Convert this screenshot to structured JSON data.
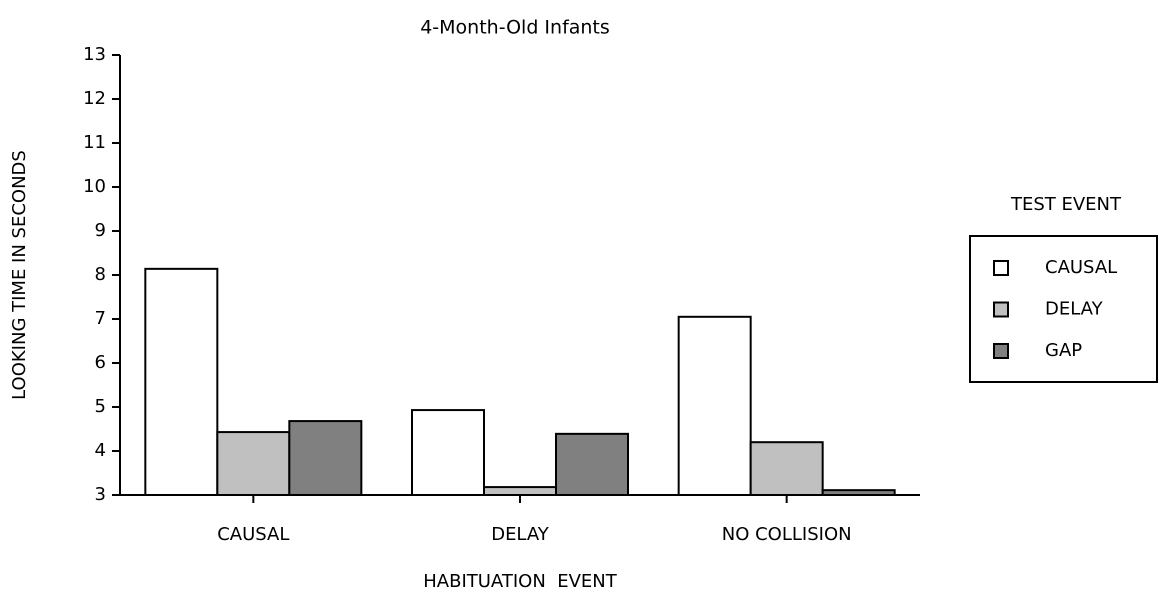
{
  "chart_data": {
    "type": "bar",
    "title": "4-Month-Old Infants",
    "x_label": "HABITUATION  EVENT",
    "y_label": "LOOKING TIME IN SECONDS",
    "categories": [
      "CAUSAL",
      "DELAY",
      "NO COLLISION"
    ],
    "series": [
      {
        "name": "CAUSAL",
        "color": "#ffffff",
        "values": [
          8.14,
          4.93,
          7.05
        ]
      },
      {
        "name": "DELAY",
        "color": "#c0c0c0",
        "values": [
          4.43,
          3.18,
          4.2
        ]
      },
      {
        "name": "GAP",
        "color": "#808080",
        "values": [
          4.68,
          4.39,
          3.11
        ]
      }
    ],
    "legend_title": "TEST EVENT",
    "legend_position": "right",
    "ylim": [
      3,
      13
    ],
    "yticks": [
      3,
      4,
      5,
      6,
      7,
      8,
      9,
      10,
      11,
      12,
      13
    ]
  }
}
